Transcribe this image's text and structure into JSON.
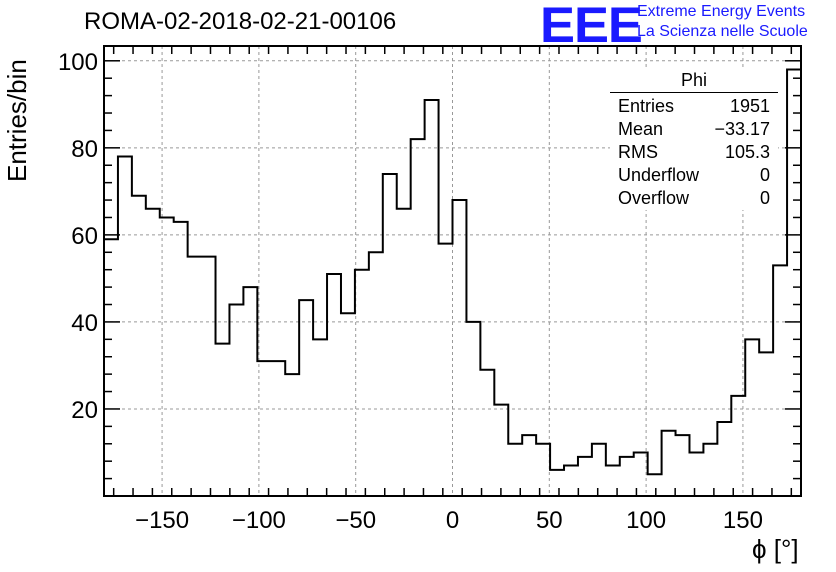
{
  "chart_data": {
    "type": "histogram",
    "title": "ROMA-02-2018-02-21-00106",
    "xlabel": "ϕ [°]",
    "ylabel": "Entries/bin",
    "xlim": [
      -180,
      180
    ],
    "ylim": [
      0,
      100
    ],
    "bin_width": 7.2,
    "bin_edges_start": -180,
    "values": [
      59,
      78,
      69,
      66,
      64,
      63,
      55,
      55,
      35,
      44,
      48,
      31,
      31,
      28,
      45,
      36,
      51,
      42,
      52,
      56,
      74,
      66,
      82,
      91,
      58,
      68,
      40,
      29,
      21,
      12,
      14,
      12,
      6,
      7,
      9,
      12,
      7,
      9,
      10,
      5,
      15,
      14,
      10,
      12,
      17,
      23,
      36,
      33,
      53,
      98
    ],
    "x_ticks": [
      -150,
      -100,
      -50,
      0,
      50,
      100,
      150
    ],
    "x_tick_labels": [
      "−150",
      "−100",
      "−50",
      "0",
      "50",
      "100",
      "150"
    ],
    "y_ticks": [
      20,
      40,
      60,
      80,
      100
    ],
    "y_tick_labels": [
      "20",
      "40",
      "60",
      "80",
      "100"
    ],
    "grid": true,
    "line_color": "#000000"
  },
  "stats_box": {
    "title": "Phi",
    "rows": [
      {
        "label": "Entries",
        "value": "1951"
      },
      {
        "label": "Mean",
        "value": "−33.17"
      },
      {
        "label": "RMS",
        "value": "105.3"
      },
      {
        "label": "Underflow",
        "value": "0"
      },
      {
        "label": "Overflow",
        "value": "0"
      }
    ]
  },
  "logo": {
    "mark": "EEE",
    "line1": "Extreme Energy Events",
    "line2": "La Scienza nelle Scuole",
    "color": "#1a1aff"
  }
}
